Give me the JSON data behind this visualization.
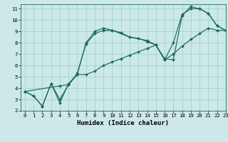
{
  "title": "",
  "xlabel": "Humidex (Indice chaleur)",
  "xlim": [
    -0.5,
    23
  ],
  "ylim": [
    2,
    11.4
  ],
  "xticks": [
    0,
    1,
    2,
    3,
    4,
    5,
    6,
    7,
    8,
    9,
    10,
    11,
    12,
    13,
    14,
    15,
    16,
    17,
    18,
    19,
    20,
    21,
    22,
    23
  ],
  "yticks": [
    2,
    3,
    4,
    5,
    6,
    7,
    8,
    9,
    10,
    11
  ],
  "bg_color": "#cce8e8",
  "grid_color": "#9ecece",
  "line_color": "#1a6b5a",
  "series": [
    {
      "x": [
        0,
        1,
        2,
        3,
        4,
        5,
        6,
        7,
        8,
        9,
        10,
        11,
        12,
        13,
        14,
        15,
        16,
        17,
        18,
        19,
        20,
        21,
        22,
        23
      ],
      "y": [
        3.7,
        3.3,
        2.4,
        4.4,
        3.0,
        4.3,
        5.3,
        7.9,
        8.8,
        9.1,
        9.1,
        8.9,
        8.5,
        8.4,
        8.1,
        7.8,
        6.5,
        8.0,
        10.5,
        11.0,
        11.0,
        10.6,
        9.5,
        9.1
      ]
    },
    {
      "x": [
        0,
        1,
        2,
        3,
        4,
        5,
        6,
        7,
        8,
        9,
        10,
        11,
        12,
        13,
        14,
        15,
        16,
        17,
        18,
        19,
        20,
        21,
        22,
        23
      ],
      "y": [
        3.7,
        3.3,
        2.4,
        4.4,
        2.7,
        4.4,
        5.2,
        5.2,
        5.5,
        6.0,
        6.3,
        6.6,
        6.9,
        7.2,
        7.5,
        7.8,
        6.5,
        7.0,
        7.7,
        8.3,
        8.8,
        9.3,
        9.1,
        9.1
      ]
    },
    {
      "x": [
        0,
        4,
        5,
        6,
        7,
        8,
        9,
        10,
        12,
        14,
        15,
        16,
        17,
        18,
        19,
        20,
        21,
        22,
        23
      ],
      "y": [
        3.7,
        4.2,
        4.3,
        5.2,
        8.0,
        9.0,
        9.3,
        9.1,
        8.5,
        8.2,
        7.8,
        6.6,
        6.5,
        10.4,
        11.2,
        11.0,
        10.6,
        9.5,
        9.1
      ]
    }
  ],
  "xlabel_fontsize": 6.5,
  "tick_fontsize": 5.2
}
